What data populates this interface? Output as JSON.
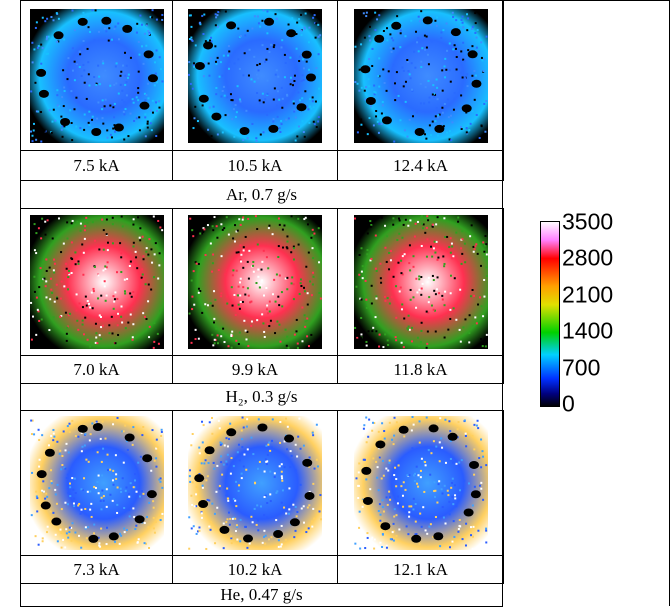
{
  "groups": [
    {
      "labels": [
        "7.5 kA",
        "10.5 kA",
        "12.4 kA"
      ],
      "caption": "Ar, 0.7 g/s"
    },
    {
      "labels": [
        "7.0 kA",
        "9.9 kA",
        "11.8 kA"
      ],
      "caption": "H₂, 0.3 g/s"
    },
    {
      "labels": [
        "7.3 kA",
        "10.2 kA",
        "12.1 kA"
      ],
      "caption": "He, 0.47 g/s"
    }
  ],
  "colorbar": {
    "ticks": [
      3500,
      2800,
      2100,
      1400,
      700,
      0
    ]
  }
}
